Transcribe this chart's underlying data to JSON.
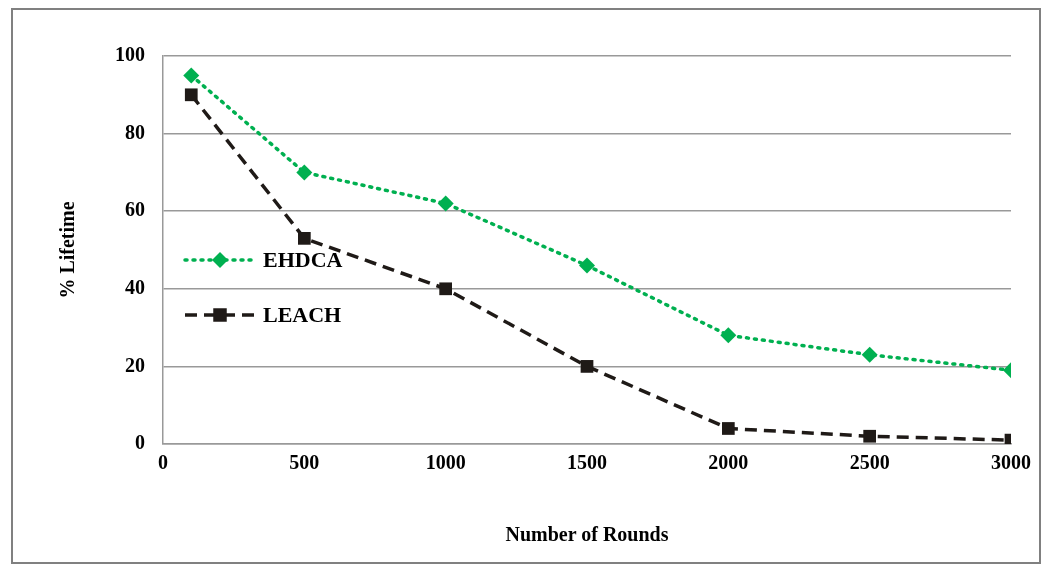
{
  "chart_data": {
    "type": "line",
    "xlabel": "Number of Rounds",
    "ylabel": "% Lifetime",
    "x": [
      100,
      500,
      1000,
      1500,
      2000,
      2500,
      3000
    ],
    "series": [
      {
        "name": "EHDCA",
        "color": "#00b050",
        "values": [
          95,
          70,
          62,
          46,
          28,
          23,
          19
        ],
        "marker": "diamond",
        "line_style": "dotted"
      },
      {
        "name": "LEACH",
        "color": "#1f1a17",
        "values": [
          90,
          53,
          40,
          20,
          4,
          2,
          1
        ],
        "marker": "square",
        "line_style": "dashed"
      }
    ],
    "xlim": [
      0,
      3000
    ],
    "xticks": [
      0,
      500,
      1000,
      1500,
      2000,
      2500,
      3000
    ],
    "ylim": [
      0,
      100
    ],
    "yticks": [
      0,
      20,
      40,
      60,
      80,
      100
    ],
    "grid": "y",
    "legend": "left"
  }
}
